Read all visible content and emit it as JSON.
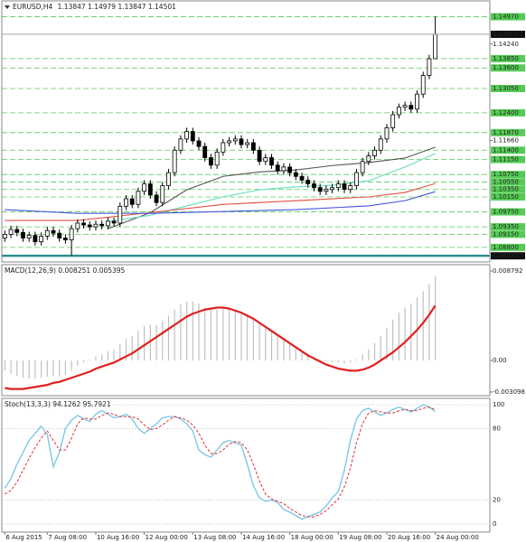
{
  "chart_data": [
    {
      "type": "candlestick",
      "title": "EURUSD,H4",
      "open": [
        1.0905,
        1.0915,
        1.0928,
        1.092,
        1.0905,
        1.0912,
        1.0895,
        1.091,
        1.0925,
        1.0918,
        1.0905,
        1.09,
        1.093,
        1.0945,
        1.094,
        1.0935,
        1.0942,
        1.0938,
        1.095,
        1.0945,
        1.099,
        1.101,
        1.0995,
        1.103,
        1.105,
        1.102,
        1.1,
        1.1045,
        1.108,
        1.114,
        1.117,
        1.119,
        1.1165,
        1.115,
        1.112,
        1.11,
        1.1135,
        1.116,
        1.1165,
        1.117,
        1.1155,
        1.116,
        1.114,
        1.111,
        1.112,
        1.11,
        1.1085,
        1.1095,
        1.108,
        1.107,
        1.106,
        1.105,
        1.104,
        1.103,
        1.1035,
        1.104,
        1.105,
        1.1035,
        1.1045,
        1.108,
        1.111,
        1.1125,
        1.114,
        1.117,
        1.12,
        1.1235,
        1.1255,
        1.126,
        1.125,
        1.129,
        1.134,
        1.13847
      ],
      "high": [
        1.0925,
        1.0938,
        1.0938,
        1.093,
        1.0922,
        1.0922,
        1.092,
        1.0935,
        1.0935,
        1.0928,
        1.0915,
        1.094,
        1.0955,
        1.0955,
        1.095,
        1.0952,
        1.0952,
        1.096,
        1.096,
        1.1,
        1.102,
        1.102,
        1.104,
        1.106,
        1.106,
        1.103,
        1.1055,
        1.109,
        1.115,
        1.118,
        1.12,
        1.12,
        1.1175,
        1.116,
        1.113,
        1.1145,
        1.117,
        1.1175,
        1.118,
        1.118,
        1.117,
        1.117,
        1.115,
        1.113,
        1.113,
        1.111,
        1.1105,
        1.1105,
        1.109,
        1.108,
        1.107,
        1.106,
        1.105,
        1.1045,
        1.105,
        1.106,
        1.106,
        1.1055,
        1.109,
        1.112,
        1.1135,
        1.115,
        1.118,
        1.121,
        1.1245,
        1.1265,
        1.127,
        1.127,
        1.13,
        1.135,
        1.1395,
        1.14979
      ],
      "low": [
        1.0895,
        1.0905,
        1.091,
        1.0895,
        1.0895,
        1.0885,
        1.0885,
        1.09,
        1.0908,
        1.0895,
        1.089,
        1.0858,
        1.092,
        1.093,
        1.0925,
        1.0925,
        1.0928,
        1.0928,
        1.0935,
        1.0935,
        1.098,
        1.0985,
        1.0985,
        1.102,
        1.101,
        1.099,
        1.099,
        1.1035,
        1.107,
        1.113,
        1.116,
        1.1155,
        1.114,
        1.111,
        1.109,
        1.109,
        1.1125,
        1.115,
        1.1155,
        1.1145,
        1.1145,
        1.113,
        1.11,
        1.11,
        1.109,
        1.1075,
        1.1075,
        1.107,
        1.106,
        1.105,
        1.104,
        1.103,
        1.102,
        1.102,
        1.1025,
        1.103,
        1.1025,
        1.1025,
        1.1035,
        1.107,
        1.11,
        1.1115,
        1.113,
        1.116,
        1.119,
        1.1225,
        1.1245,
        1.124,
        1.124,
        1.128,
        1.133,
        1.13847
      ],
      "close": [
        1.0915,
        1.0928,
        1.092,
        1.0905,
        1.0912,
        1.0895,
        1.091,
        1.0925,
        1.0918,
        1.0905,
        1.09,
        1.093,
        1.0945,
        1.094,
        1.0935,
        1.0942,
        1.0938,
        1.095,
        1.0945,
        1.099,
        1.101,
        1.0995,
        1.103,
        1.105,
        1.102,
        1.1,
        1.1045,
        1.108,
        1.114,
        1.117,
        1.119,
        1.1165,
        1.115,
        1.112,
        1.11,
        1.1135,
        1.116,
        1.1165,
        1.117,
        1.1155,
        1.116,
        1.114,
        1.111,
        1.112,
        1.11,
        1.1085,
        1.1095,
        1.108,
        1.107,
        1.106,
        1.105,
        1.104,
        1.103,
        1.1035,
        1.104,
        1.105,
        1.1035,
        1.1045,
        1.108,
        1.111,
        1.1125,
        1.114,
        1.117,
        1.12,
        1.1235,
        1.1255,
        1.126,
        1.125,
        1.129,
        1.134,
        1.13847,
        1.14501
      ],
      "moving_averages": [
        {
          "color": "#555555",
          "x": [
            17,
            24,
            30,
            36,
            42,
            48,
            54,
            60,
            66,
            71
          ],
          "values": [
            1.093,
            1.0973,
            1.1034,
            1.107,
            1.1082,
            1.1087,
            1.1099,
            1.1107,
            1.1119,
            1.1148
          ]
        },
        {
          "color": "#66ddbb",
          "x": [
            17,
            24,
            30,
            36,
            42,
            48,
            54,
            60,
            66,
            71
          ],
          "values": [
            1.0949,
            1.0966,
            1.0991,
            1.1015,
            1.1034,
            1.1042,
            1.1046,
            1.1058,
            1.1095,
            1.1131
          ]
        },
        {
          "color": "#e05040",
          "x": [
            0,
            12,
            24,
            36,
            48,
            60,
            66,
            71
          ],
          "values": [
            1.0952,
            1.0952,
            1.0973,
            1.0995,
            1.1005,
            1.1015,
            1.1027,
            1.1051
          ]
        },
        {
          "color": "#4455dd",
          "x": [
            0,
            12,
            24,
            36,
            48,
            60,
            66,
            71
          ],
          "values": [
            1.0981,
            1.0971,
            1.0971,
            1.0976,
            1.0981,
            1.0991,
            1.1005,
            1.1029
          ]
        }
      ],
      "xlim": [
        -0.5,
        80
      ],
      "ylim": [
        1.0841,
        1.1537
      ],
      "yticks": [
        {
          "value": 1.1424,
          "label": "1.14240"
        },
        {
          "value": 1.1166,
          "label": "1.11660"
        }
      ],
      "levels": [
        {
          "value": 1.1497,
          "label": "1.14970"
        },
        {
          "value": 1.1385,
          "label": "1.13850"
        },
        {
          "value": 1.136,
          "label": "1.13600"
        },
        {
          "value": 1.1305,
          "label": "1.13050"
        },
        {
          "value": 1.124,
          "label": "1.12400"
        },
        {
          "value": 1.1187,
          "label": "1.11870"
        },
        {
          "value": 1.114,
          "label": "1.11400"
        },
        {
          "value": 1.1115,
          "label": "1.11150"
        },
        {
          "value": 1.1075,
          "label": "1.10750"
        },
        {
          "value": 1.1055,
          "label": "1.10550"
        },
        {
          "value": 1.1035,
          "label": "1.10350"
        },
        {
          "value": 1.1015,
          "label": "1.10150"
        },
        {
          "value": 1.0975,
          "label": "1.09750"
        },
        {
          "value": 1.0935,
          "label": "1.09350"
        },
        {
          "value": 1.0915,
          "label": "1.09150"
        },
        {
          "value": 1.088,
          "label": "1.08800"
        }
      ],
      "level_color": "#55cc55",
      "support": 1.08575,
      "support_color": "#2a8f8f"
    },
    {
      "type": "macd",
      "title": "MACD(12,26,9)",
      "series": [
        {
          "color": "#c0c0c0",
          "values": [
            -0.001,
            -0.0013,
            -0.0015,
            -0.0017,
            -0.0018,
            -0.0018,
            -0.0017,
            -0.0016,
            -0.0015,
            -0.0015,
            -0.0014,
            -0.001,
            -0.0005,
            -0.0002,
            0.0001,
            0.0004,
            0.0006,
            0.0009,
            0.0011,
            0.0016,
            0.0021,
            0.0024,
            0.0029,
            0.0034,
            0.0035,
            0.0035,
            0.0039,
            0.0044,
            0.005,
            0.0055,
            0.0058,
            0.0058,
            0.0056,
            0.0052,
            0.005,
            0.005,
            0.0051,
            0.0051,
            0.005,
            0.0048,
            0.0046,
            0.0042,
            0.0037,
            0.0033,
            0.0029,
            0.0025,
            0.0022,
            0.0018,
            0.0014,
            0.001,
            0.0007,
            0.0004,
            0.0001,
            -0.0001,
            -0.0002,
            -0.0002,
            -0.0003,
            -0.0002,
            0.0001,
            0.0006,
            0.0011,
            0.0017,
            0.0024,
            0.0032,
            0.004,
            0.0047,
            0.0052,
            0.0056,
            0.0062,
            0.0068,
            0.0075,
            0.008251
          ]
        },
        {
          "color": "#e02020",
          "values": [
            -0.0027,
            -0.0028,
            -0.0028,
            -0.0028,
            -0.0027,
            -0.0026,
            -0.0025,
            -0.0024,
            -0.0022,
            -0.0021,
            -0.0019,
            -0.0017,
            -0.0015,
            -0.0013,
            -0.0011,
            -0.0008,
            -0.0006,
            -0.0004,
            -0.0002,
            0.0001,
            0.0004,
            0.0007,
            0.0011,
            0.0015,
            0.0019,
            0.0023,
            0.0027,
            0.0031,
            0.0035,
            0.0039,
            0.0043,
            0.0046,
            0.0048,
            0.005,
            0.0051,
            0.0052,
            0.0052,
            0.0051,
            0.0049,
            0.0047,
            0.0044,
            0.0041,
            0.0037,
            0.0033,
            0.0029,
            0.0025,
            0.0021,
            0.0017,
            0.0013,
            0.0009,
            0.0005,
            0.0002,
            -0.0001,
            -0.0004,
            -0.0006,
            -0.0008,
            -0.0009,
            -0.001,
            -0.001,
            -0.0009,
            -0.0007,
            -0.0004,
            0.0,
            0.0004,
            0.0008,
            0.0013,
            0.0018,
            0.0024,
            0.003,
            0.0037,
            0.0045,
            0.005395
          ]
        }
      ],
      "ylim": [
        -0.003098,
        0.008792
      ],
      "yticks": [
        {
          "value": 0.008792,
          "label": "0.008792"
        },
        {
          "value": 0,
          "label": "0.00"
        },
        {
          "value": -0.003098,
          "label": "-0.003098"
        }
      ]
    },
    {
      "type": "stochastic",
      "title": "Stoch(13,3,3)",
      "series": [
        {
          "color": "#7ec8e8",
          "values": [
            30,
            38,
            50,
            60,
            70,
            76,
            82,
            75,
            48,
            60,
            80,
            87,
            91,
            88,
            86,
            92,
            95,
            92,
            89,
            90,
            92,
            88,
            80,
            76,
            80,
            84,
            89,
            90,
            90,
            88,
            84,
            78,
            62,
            58,
            56,
            62,
            68,
            70,
            68,
            66,
            50,
            32,
            22,
            19,
            20,
            18,
            12,
            10,
            7,
            4,
            6,
            8,
            10,
            15,
            22,
            27,
            45,
            70,
            88,
            95,
            97,
            94,
            91,
            93,
            96,
            98,
            96,
            94,
            97,
            100,
            98,
            94.1262
          ]
        },
        {
          "color": "#e03030",
          "values": [
            25,
            28,
            35,
            45,
            55,
            64,
            72,
            78,
            70,
            62,
            62,
            72,
            84,
            89,
            88,
            88,
            91,
            93,
            92,
            90,
            90,
            90,
            88,
            83,
            79,
            80,
            83,
            87,
            90,
            89,
            87,
            83,
            76,
            66,
            59,
            59,
            62,
            67,
            69,
            68,
            62,
            50,
            36,
            25,
            21,
            19,
            17,
            13,
            10,
            7,
            6,
            6,
            8,
            11,
            16,
            21,
            31,
            47,
            68,
            84,
            93,
            95,
            94,
            93,
            93,
            95,
            96,
            95,
            95,
            97,
            98,
            95.7921
          ]
        }
      ],
      "ylim": [
        0,
        100
      ],
      "yticks": [
        100,
        80,
        20,
        0
      ],
      "xticks": [
        {
          "value": 0,
          "label": "6 Aug 2015"
        },
        {
          "value": 7,
          "label": "7 Aug 08:00"
        },
        {
          "value": 15,
          "label": "10 Aug 16:00"
        },
        {
          "value": 23,
          "label": "12 Aug 00:00"
        },
        {
          "value": 31,
          "label": "13 Aug 08:00"
        },
        {
          "value": 39,
          "label": "14 Aug 16:00"
        },
        {
          "value": 47,
          "label": "18 Aug 00:00"
        },
        {
          "value": 55,
          "label": "19 Aug 08:00"
        },
        {
          "value": 63,
          "label": "20 Aug 16:00"
        },
        {
          "value": 71,
          "label": "24 Aug 00:00"
        }
      ]
    }
  ]
}
